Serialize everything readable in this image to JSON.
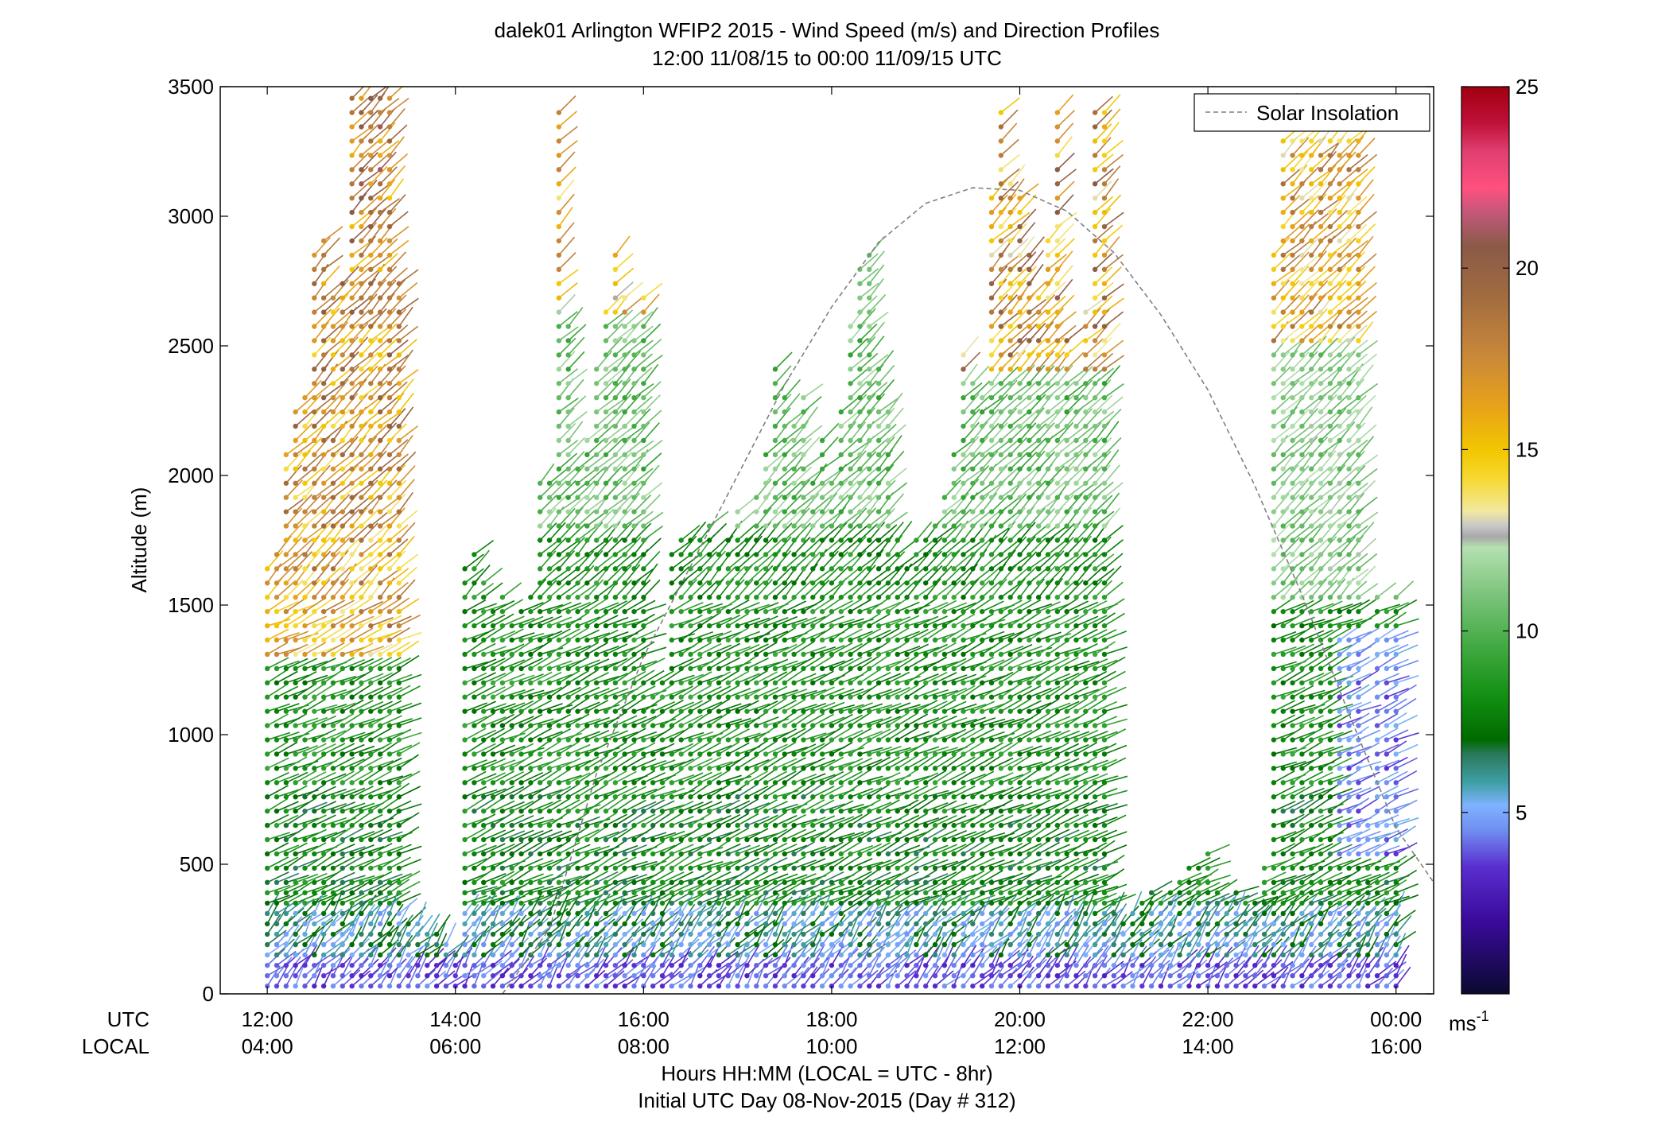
{
  "chart_data": {
    "type": "wind-barb-profile",
    "title": "dalek01 Arlington WFIP2 2015 - Wind Speed (m/s) and Direction Profiles",
    "subtitle": "12:00 11/08/15 to 00:00 11/09/15  UTC",
    "ylabel": "Altitude (m)",
    "xlabel": "Hours HH:MM  (LOCAL = UTC - 8hr)",
    "xlabel2": "Initial UTC Day 08-Nov-2015 (Day # 312)",
    "row_label_utc": "UTC",
    "row_label_local": "LOCAL",
    "xlim_hours_utc": [
      11.5,
      24.4
    ],
    "ylim": [
      0,
      3500
    ],
    "yticks": [
      0,
      500,
      1000,
      1500,
      2000,
      2500,
      3000,
      3500
    ],
    "xticks_utc": [
      {
        "h": 12,
        "label": "12:00"
      },
      {
        "h": 14,
        "label": "14:00"
      },
      {
        "h": 16,
        "label": "16:00"
      },
      {
        "h": 18,
        "label": "18:00"
      },
      {
        "h": 20,
        "label": "20:00"
      },
      {
        "h": 22,
        "label": "22:00"
      },
      {
        "h": 24,
        "label": "00:00"
      }
    ],
    "xticks_local": [
      "04:00",
      "06:00",
      "08:00",
      "10:00",
      "12:00",
      "14:00",
      "16:00"
    ],
    "legend": {
      "label": "Solar Insolation",
      "placement": "top-right",
      "style": "dashed",
      "color": "#808080"
    },
    "solar_insolation_curve": [
      [
        14.5,
        0
      ],
      [
        15.0,
        250
      ],
      [
        15.5,
        850
      ],
      [
        16.0,
        1300
      ],
      [
        16.5,
        1650
      ],
      [
        17.0,
        2000
      ],
      [
        17.5,
        2350
      ],
      [
        18.0,
        2650
      ],
      [
        18.5,
        2900
      ],
      [
        19.0,
        3050
      ],
      [
        19.5,
        3110
      ],
      [
        20.0,
        3100
      ],
      [
        20.5,
        3020
      ],
      [
        21.0,
        2860
      ],
      [
        21.5,
        2620
      ],
      [
        22.0,
        2330
      ],
      [
        22.5,
        1960
      ],
      [
        23.0,
        1540
      ],
      [
        23.5,
        1080
      ],
      [
        24.0,
        640
      ],
      [
        24.4,
        430
      ]
    ],
    "colorbar": {
      "range": [
        0,
        25
      ],
      "ticks": [
        5,
        10,
        15,
        20,
        25
      ],
      "unit_label": "ms",
      "unit_exponent": "-1",
      "colors": [
        [
          0,
          "#0a0a30"
        ],
        [
          2,
          "#3a0a9a"
        ],
        [
          3.5,
          "#5a2ed0"
        ],
        [
          4.5,
          "#6f8ef0"
        ],
        [
          5.2,
          "#7fb2ff"
        ],
        [
          5.8,
          "#40a0a8"
        ],
        [
          6.6,
          "#2a7a5a"
        ],
        [
          7.0,
          "#006a00"
        ],
        [
          8.2,
          "#138f13"
        ],
        [
          9.5,
          "#3fa83f"
        ],
        [
          11.0,
          "#7cc47c"
        ],
        [
          12.3,
          "#b4e0b0"
        ],
        [
          12.6,
          "#a8a8a8"
        ],
        [
          12.9,
          "#c8c8c8"
        ],
        [
          13.3,
          "#f2e8a0"
        ],
        [
          14.2,
          "#f7d830"
        ],
        [
          15.0,
          "#f2c600"
        ],
        [
          16.2,
          "#e8a21a"
        ],
        [
          17.6,
          "#c8883a"
        ],
        [
          19.3,
          "#a06a40"
        ],
        [
          20.6,
          "#8a5a48"
        ],
        [
          21.5,
          "#c05878"
        ],
        [
          22.2,
          "#ff5080"
        ],
        [
          23.2,
          "#e04070"
        ],
        [
          24.0,
          "#c0103a"
        ],
        [
          25.0,
          "#a00010"
        ]
      ]
    },
    "profiles": [
      {
        "h": 12.0,
        "top": 1650
      },
      {
        "h": 12.1,
        "top": 1700
      },
      {
        "h": 12.2,
        "top": 2100
      },
      {
        "h": 12.3,
        "top": 2250
      },
      {
        "h": 12.4,
        "top": 2300
      },
      {
        "h": 12.5,
        "top": 2900
      },
      {
        "h": 12.6,
        "top": 2950
      },
      {
        "h": 12.7,
        "top": 2700
      },
      {
        "h": 12.8,
        "top": 2750
      },
      {
        "h": 12.9,
        "top": 3500
      },
      {
        "h": 13.0,
        "top": 3500
      },
      {
        "h": 13.1,
        "top": 3500
      },
      {
        "h": 13.2,
        "top": 3500
      },
      {
        "h": 13.3,
        "top": 3500
      },
      {
        "h": 13.4,
        "top": 2750
      },
      {
        "h": 13.5,
        "top": 300
      },
      {
        "h": 13.6,
        "top": 280
      },
      {
        "h": 13.7,
        "top": 250
      },
      {
        "h": 13.8,
        "top": 230
      },
      {
        "h": 13.9,
        "top": 200
      },
      {
        "h": 14.0,
        "top": 180
      },
      {
        "h": 14.1,
        "top": 1650
      },
      {
        "h": 14.2,
        "top": 1700
      },
      {
        "h": 14.3,
        "top": 1600
      },
      {
        "h": 14.4,
        "top": 1500
      },
      {
        "h": 14.5,
        "top": 1550
      },
      {
        "h": 14.6,
        "top": 1450
      },
      {
        "h": 14.7,
        "top": 1500
      },
      {
        "h": 14.8,
        "top": 1550
      },
      {
        "h": 14.9,
        "top": 1980
      },
      {
        "h": 15.0,
        "top": 2000
      },
      {
        "h": 15.1,
        "top": 3450
      },
      {
        "h": 15.2,
        "top": 2600
      },
      {
        "h": 15.3,
        "top": 2050
      },
      {
        "h": 15.4,
        "top": 2150
      },
      {
        "h": 15.5,
        "top": 2450
      },
      {
        "h": 15.6,
        "top": 2650
      },
      {
        "h": 15.7,
        "top": 2900
      },
      {
        "h": 15.8,
        "top": 2700
      },
      {
        "h": 15.9,
        "top": 2600
      },
      {
        "h": 16.0,
        "top": 2700
      },
      {
        "h": 16.1,
        "top": 1250
      },
      {
        "h": 16.2,
        "top": 1200
      },
      {
        "h": 16.3,
        "top": 1700
      },
      {
        "h": 16.4,
        "top": 1750
      },
      {
        "h": 16.5,
        "top": 1800
      },
      {
        "h": 16.6,
        "top": 1750
      },
      {
        "h": 16.7,
        "top": 1850
      },
      {
        "h": 16.8,
        "top": 1700
      },
      {
        "h": 16.9,
        "top": 1750
      },
      {
        "h": 17.0,
        "top": 1900
      },
      {
        "h": 17.1,
        "top": 1800
      },
      {
        "h": 17.2,
        "top": 1950
      },
      {
        "h": 17.3,
        "top": 2100
      },
      {
        "h": 17.4,
        "top": 2450
      },
      {
        "h": 17.5,
        "top": 2350
      },
      {
        "h": 17.6,
        "top": 2200
      },
      {
        "h": 17.7,
        "top": 2300
      },
      {
        "h": 17.8,
        "top": 2000
      },
      {
        "h": 17.9,
        "top": 2150
      },
      {
        "h": 18.0,
        "top": 2000
      },
      {
        "h": 18.1,
        "top": 2250
      },
      {
        "h": 18.2,
        "top": 2600
      },
      {
        "h": 18.3,
        "top": 2800
      },
      {
        "h": 18.4,
        "top": 2900
      },
      {
        "h": 18.5,
        "top": 2450
      },
      {
        "h": 18.6,
        "top": 2250
      },
      {
        "h": 18.7,
        "top": 1800
      },
      {
        "h": 18.8,
        "top": 1650
      },
      {
        "h": 18.9,
        "top": 1800
      },
      {
        "h": 19.0,
        "top": 1750
      },
      {
        "h": 19.1,
        "top": 1850
      },
      {
        "h": 19.2,
        "top": 1950
      },
      {
        "h": 19.3,
        "top": 2100
      },
      {
        "h": 19.4,
        "top": 2500
      },
      {
        "h": 19.5,
        "top": 2400
      },
      {
        "h": 19.6,
        "top": 2300
      },
      {
        "h": 19.7,
        "top": 3100
      },
      {
        "h": 19.8,
        "top": 3400
      },
      {
        "h": 19.9,
        "top": 3150
      },
      {
        "h": 20.0,
        "top": 3100
      },
      {
        "h": 20.1,
        "top": 2850
      },
      {
        "h": 20.2,
        "top": 2700
      },
      {
        "h": 20.3,
        "top": 2950
      },
      {
        "h": 20.4,
        "top": 3400
      },
      {
        "h": 20.5,
        "top": 2550
      },
      {
        "h": 20.6,
        "top": 2400
      },
      {
        "h": 20.7,
        "top": 2650
      },
      {
        "h": 20.8,
        "top": 3400
      },
      {
        "h": 20.9,
        "top": 3400
      },
      {
        "h": 21.0,
        "top": 350
      },
      {
        "h": 21.1,
        "top": 300
      },
      {
        "h": 21.2,
        "top": 320
      },
      {
        "h": 21.3,
        "top": 380
      },
      {
        "h": 21.4,
        "top": 400
      },
      {
        "h": 21.5,
        "top": 350
      },
      {
        "h": 21.6,
        "top": 420
      },
      {
        "h": 21.7,
        "top": 480
      },
      {
        "h": 21.8,
        "top": 500
      },
      {
        "h": 21.9,
        "top": 530
      },
      {
        "h": 22.0,
        "top": 550
      },
      {
        "h": 22.1,
        "top": 400
      },
      {
        "h": 22.2,
        "top": 380
      },
      {
        "h": 22.3,
        "top": 420
      },
      {
        "h": 22.4,
        "top": 380
      },
      {
        "h": 22.5,
        "top": 350
      },
      {
        "h": 22.6,
        "top": 500
      },
      {
        "h": 22.7,
        "top": 2850
      },
      {
        "h": 22.8,
        "top": 3400
      },
      {
        "h": 22.9,
        "top": 3400
      },
      {
        "h": 23.0,
        "top": 3400
      },
      {
        "h": 23.1,
        "top": 3350
      },
      {
        "h": 23.2,
        "top": 3450
      },
      {
        "h": 23.3,
        "top": 3300
      },
      {
        "h": 23.4,
        "top": 3350
      },
      {
        "h": 23.5,
        "top": 3400
      },
      {
        "h": 23.6,
        "top": 3450
      },
      {
        "h": 23.7,
        "top": 650
      },
      {
        "h": 23.8,
        "top": 1550
      },
      {
        "h": 23.9,
        "top": 1500
      },
      {
        "h": 24.0,
        "top": 1550
      }
    ]
  }
}
